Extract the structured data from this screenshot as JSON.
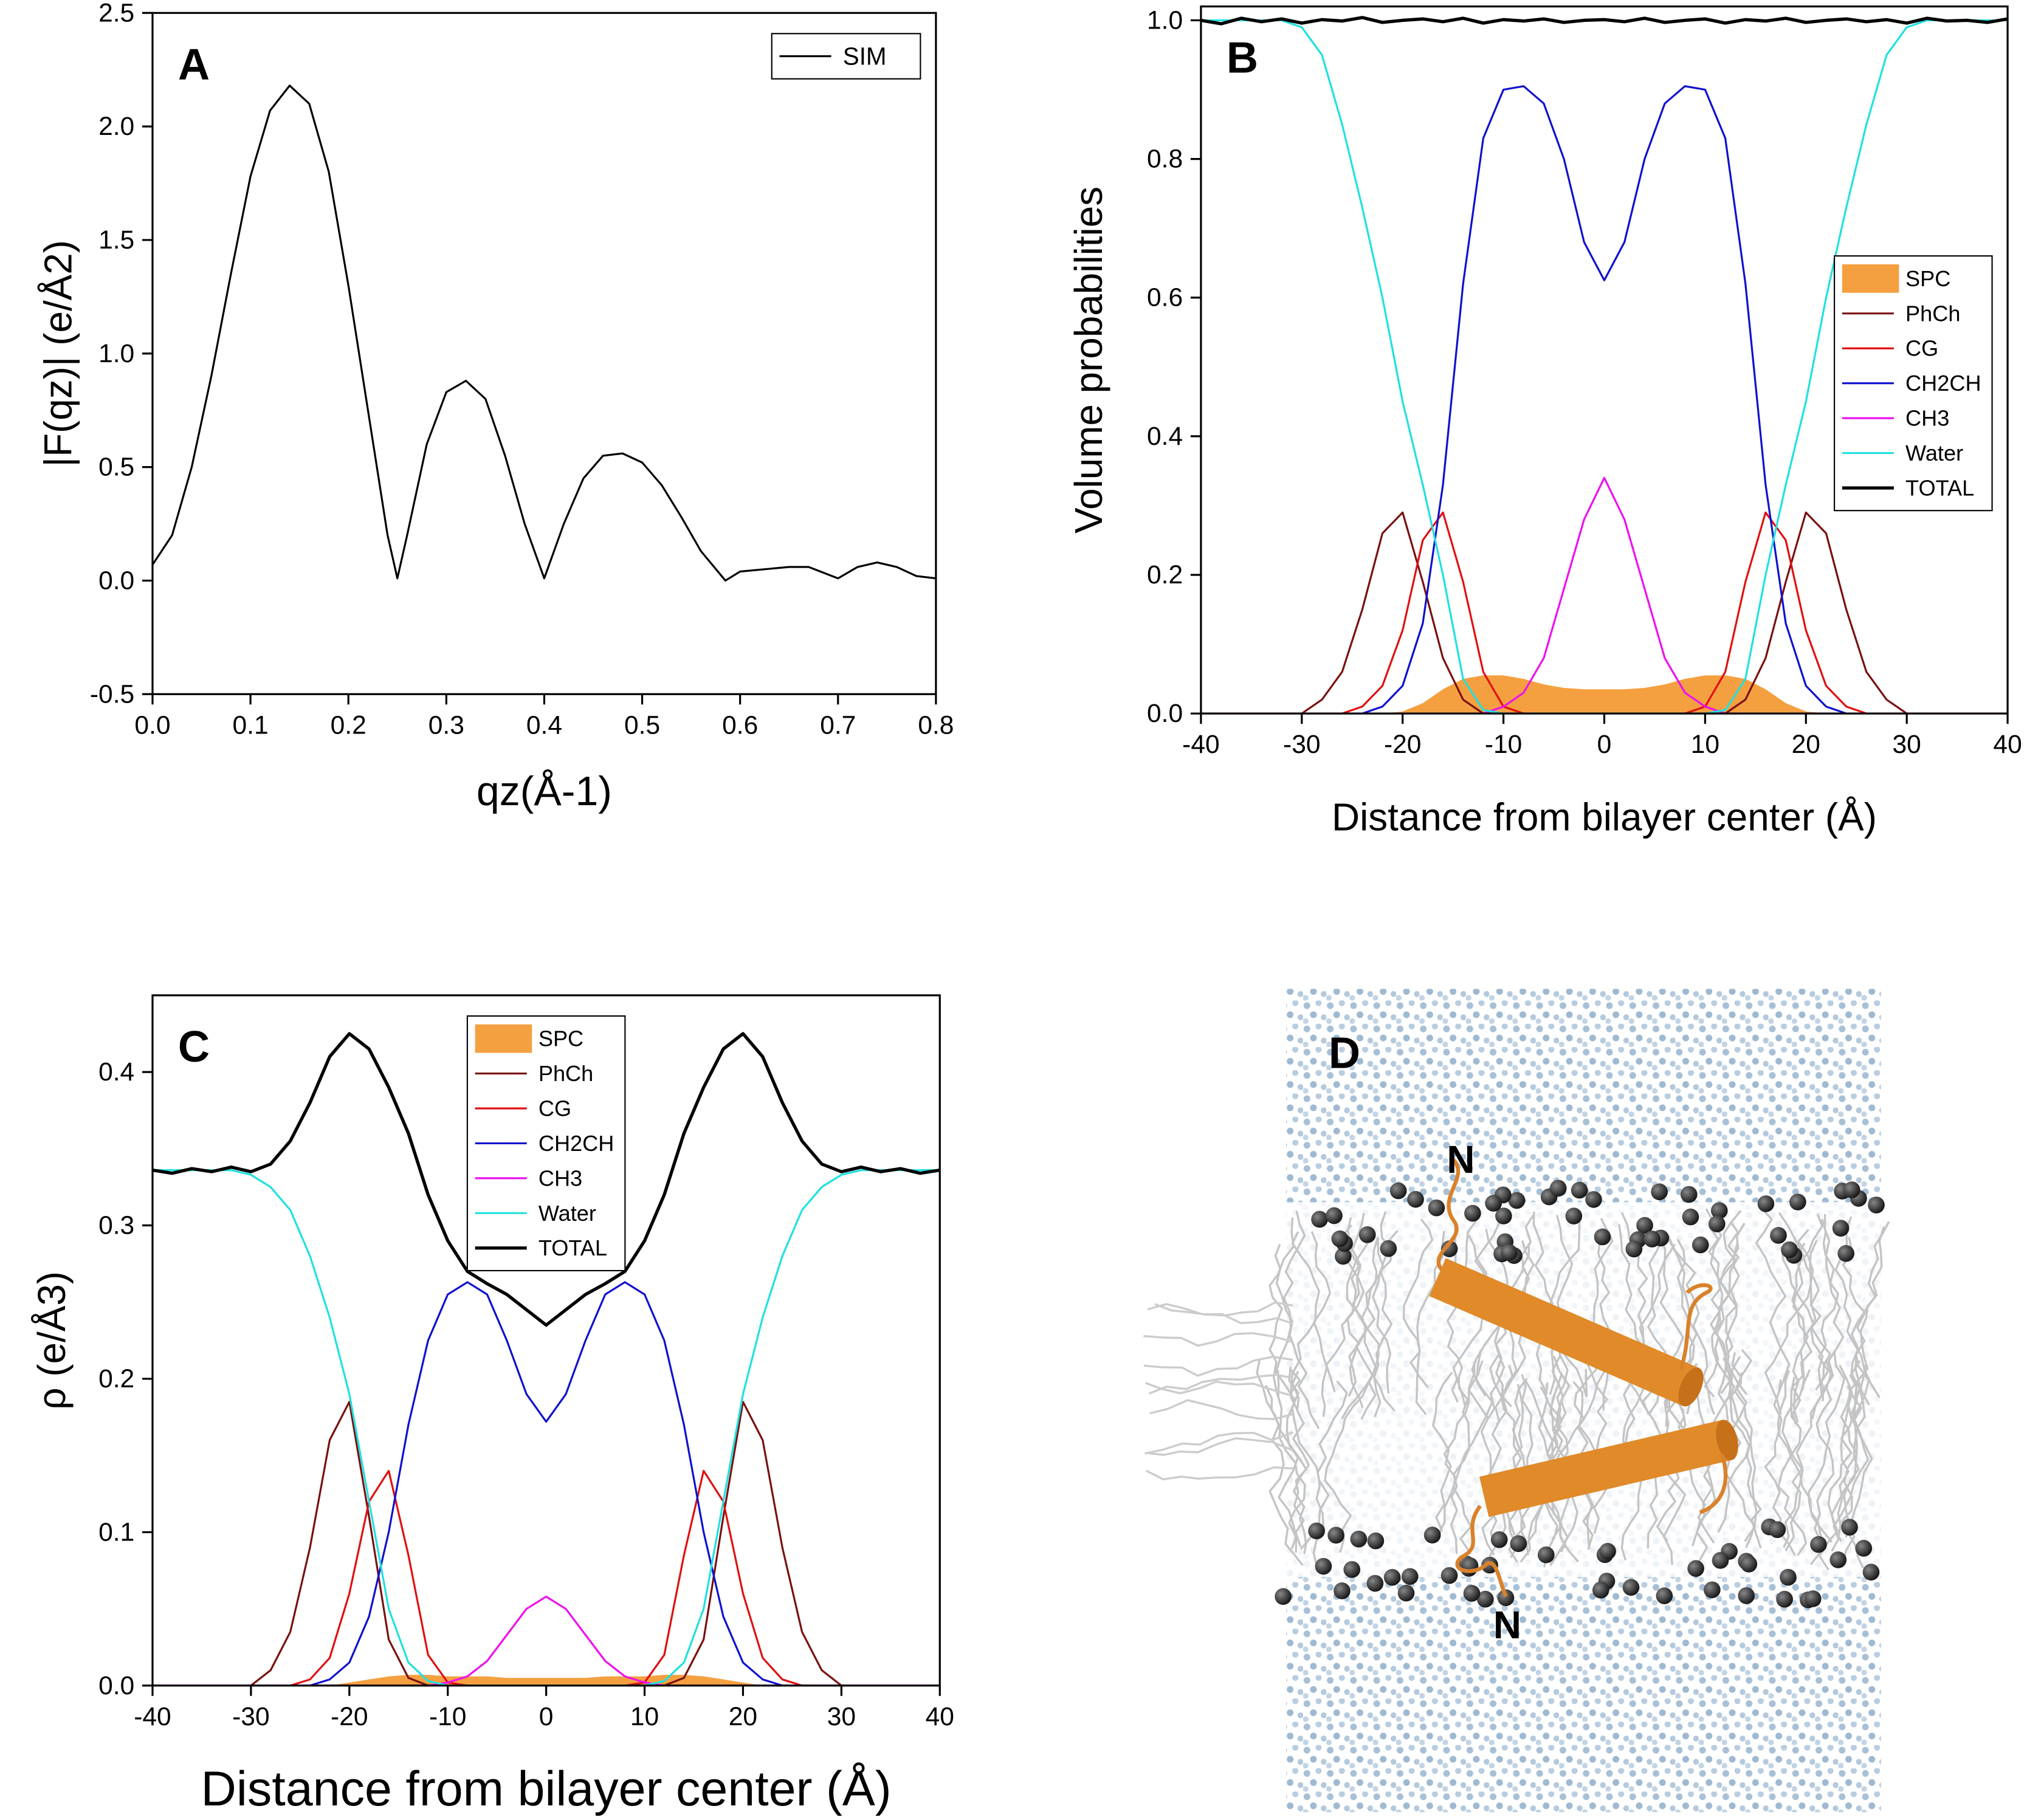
{
  "chart_data": [
    {
      "type": "line",
      "panel_label": "A",
      "xlabel": "qz(Å-1)",
      "ylabel": "|F(qz)| (e/Å2)",
      "xlim": [
        0,
        0.8
      ],
      "ylim": [
        -0.5,
        2.5
      ],
      "xticks": [
        {
          "value": 0,
          "label": "0.0"
        },
        0.1,
        0.2,
        0.3,
        0.4,
        0.5,
        0.6,
        0.7,
        0.8
      ],
      "yticks": [
        -0.5,
        {
          "value": 0,
          "label": "0.0"
        },
        0.5,
        {
          "value": 1,
          "label": "1.0"
        },
        1.5,
        {
          "value": 2,
          "label": "2.0"
        },
        2.5
      ],
      "legend_position": "upper right",
      "x": [
        0,
        0.02,
        0.04,
        0.06,
        0.08,
        0.1,
        0.12,
        0.14,
        0.16,
        0.18,
        0.2,
        0.22,
        0.24,
        0.25,
        0.26,
        0.28,
        0.3,
        0.32,
        0.34,
        0.36,
        0.38,
        0.4,
        0.42,
        0.44,
        0.46,
        0.48,
        0.5,
        0.52,
        0.54,
        0.56,
        0.585,
        0.6,
        0.65,
        0.67,
        0.7,
        0.72,
        0.74,
        0.76,
        0.78,
        0.8
      ],
      "series": [
        {
          "name": "SIM",
          "color": "#000000",
          "width": 1.5,
          "values": [
            0.07,
            0.2,
            0.5,
            0.9,
            1.35,
            1.78,
            2.07,
            2.18,
            2.1,
            1.8,
            1.3,
            0.75,
            0.2,
            0.01,
            0.2,
            0.6,
            0.83,
            0.88,
            0.8,
            0.55,
            0.25,
            0.01,
            0.25,
            0.45,
            0.55,
            0.56,
            0.52,
            0.42,
            0.28,
            0.13,
            0,
            0.04,
            0.06,
            0.06,
            0.01,
            0.06,
            0.08,
            0.06,
            0.02,
            0.01
          ]
        }
      ]
    },
    {
      "type": "line",
      "panel_label": "B",
      "xlabel": "Distance from bilayer center (Å)",
      "ylabel": "Volume probabilities",
      "xlim": [
        -40,
        40
      ],
      "ylim": [
        0,
        1.02
      ],
      "xticks": [
        -40,
        -30,
        -20,
        -10,
        0,
        10,
        20,
        30,
        40
      ],
      "yticks": [
        {
          "value": 0,
          "label": "0.0"
        },
        0.2,
        0.4,
        0.6,
        0.8,
        {
          "value": 1,
          "label": "1.0"
        }
      ],
      "legend_position": "center right",
      "x": [
        -40,
        -38,
        -36,
        -34,
        -32,
        -30,
        -28,
        -26,
        -24,
        -22,
        -20,
        -18,
        -16,
        -14,
        -12,
        -10,
        -8,
        -6,
        -4,
        -2,
        0,
        2,
        4,
        6,
        8,
        10,
        12,
        14,
        16,
        18,
        20,
        22,
        24,
        26,
        28,
        30,
        32,
        34,
        36,
        38,
        40
      ],
      "series": [
        {
          "name": "SPC",
          "color": "#f5a040",
          "kind": "area",
          "values": [
            0,
            0,
            0,
            0,
            0,
            0,
            0,
            0,
            0,
            0,
            0.003,
            0.015,
            0.035,
            0.05,
            0.055,
            0.055,
            0.05,
            0.042,
            0.037,
            0.035,
            0.035,
            0.035,
            0.037,
            0.042,
            0.05,
            0.055,
            0.055,
            0.05,
            0.035,
            0.015,
            0.003,
            0,
            0,
            0,
            0,
            0,
            0,
            0,
            0,
            0,
            0
          ]
        },
        {
          "name": "PhCh",
          "color": "#7a1010",
          "width": 1.5,
          "values": [
            0,
            0,
            0,
            0,
            0,
            0,
            0.02,
            0.06,
            0.15,
            0.26,
            0.29,
            0.19,
            0.08,
            0.02,
            0,
            0,
            0,
            0,
            0,
            0,
            0,
            0,
            0,
            0,
            0,
            0,
            0,
            0.02,
            0.08,
            0.19,
            0.29,
            0.26,
            0.15,
            0.06,
            0.02,
            0,
            0,
            0,
            0,
            0,
            0
          ]
        },
        {
          "name": "CG",
          "color": "#e01010",
          "width": 1.5,
          "values": [
            0,
            0,
            0,
            0,
            0,
            0,
            0,
            0,
            0.01,
            0.04,
            0.12,
            0.25,
            0.29,
            0.19,
            0.06,
            0.01,
            0,
            0,
            0,
            0,
            0,
            0,
            0,
            0,
            0,
            0.01,
            0.06,
            0.19,
            0.29,
            0.25,
            0.12,
            0.04,
            0.01,
            0,
            0,
            0,
            0,
            0,
            0,
            0,
            0
          ]
        },
        {
          "name": "CH2CH",
          "color": "#1010d0",
          "width": 1.5,
          "values": [
            0,
            0,
            0,
            0,
            0,
            0,
            0,
            0,
            0,
            0.01,
            0.04,
            0.13,
            0.33,
            0.62,
            0.83,
            0.9,
            0.905,
            0.88,
            0.8,
            0.68,
            0.625,
            0.68,
            0.8,
            0.88,
            0.905,
            0.9,
            0.83,
            0.62,
            0.33,
            0.13,
            0.04,
            0.01,
            0,
            0,
            0,
            0,
            0,
            0,
            0,
            0,
            0
          ]
        },
        {
          "name": "CH3",
          "color": "#ee10ee",
          "width": 1.5,
          "values": [
            0,
            0,
            0,
            0,
            0,
            0,
            0,
            0,
            0,
            0,
            0,
            0,
            0,
            0,
            0,
            0.01,
            0.03,
            0.08,
            0.18,
            0.28,
            0.34,
            0.28,
            0.18,
            0.08,
            0.03,
            0.01,
            0,
            0,
            0,
            0,
            0,
            0,
            0,
            0,
            0,
            0,
            0,
            0,
            0,
            0,
            0
          ]
        },
        {
          "name": "Water",
          "color": "#20e0e0",
          "width": 1.5,
          "values": [
            1,
            1,
            1,
            1,
            1,
            0.99,
            0.95,
            0.85,
            0.73,
            0.6,
            0.45,
            0.33,
            0.2,
            0.05,
            0.005,
            0,
            0,
            0,
            0,
            0,
            0,
            0,
            0,
            0,
            0,
            0,
            0.005,
            0.05,
            0.2,
            0.33,
            0.45,
            0.6,
            0.73,
            0.85,
            0.95,
            0.99,
            1,
            1,
            1,
            1,
            1
          ]
        },
        {
          "name": "TOTAL",
          "color": "#000000",
          "width": 2.5,
          "values": [
            1.0,
            0.995,
            1.003,
            0.998,
            1.002,
            0.996,
            1.001,
            0.999,
            1.004,
            0.997,
            1.0,
            1.002,
            0.998,
            1.003,
            0.996,
            1.001,
            0.999,
            1.002,
            0.997,
            1.0,
            1.001,
            0.998,
            1.003,
            0.997,
            1.0,
            1.002,
            0.996,
            1.001,
            0.999,
            1.003,
            0.997,
            1.0,
            1.002,
            0.998,
            1.001,
            0.996,
            1.003,
            0.999,
            1.0,
            0.997,
            1.002
          ]
        }
      ]
    },
    {
      "type": "line",
      "panel_label": "C",
      "xlabel": "Distance from bilayer center (Å)",
      "ylabel": "ρ (e/Å3)",
      "xlim": [
        -40,
        40
      ],
      "ylim": [
        0,
        0.45
      ],
      "xticks": [
        -40,
        -30,
        -20,
        -10,
        0,
        10,
        20,
        30,
        40
      ],
      "yticks": [
        {
          "value": 0,
          "label": "0.0"
        },
        0.1,
        0.2,
        0.3,
        0.4
      ],
      "legend_position": "upper center",
      "x": [
        -40,
        -38,
        -36,
        -34,
        -32,
        -30,
        -28,
        -26,
        -24,
        -22,
        -20,
        -18,
        -16,
        -14,
        -12,
        -10,
        -8,
        -6,
        -4,
        -2,
        0,
        2,
        4,
        6,
        8,
        10,
        12,
        14,
        16,
        18,
        20,
        22,
        24,
        26,
        28,
        30,
        32,
        34,
        36,
        38,
        40
      ],
      "series": [
        {
          "name": "SPC",
          "color": "#f5a040",
          "kind": "area",
          "values": [
            0,
            0,
            0,
            0,
            0,
            0,
            0,
            0,
            0,
            0,
            0.002,
            0.004,
            0.006,
            0.007,
            0.007,
            0.006,
            0.006,
            0.006,
            0.005,
            0.005,
            0.005,
            0.005,
            0.005,
            0.006,
            0.006,
            0.006,
            0.007,
            0.007,
            0.006,
            0.004,
            0.002,
            0,
            0,
            0,
            0,
            0,
            0,
            0,
            0,
            0,
            0
          ]
        },
        {
          "name": "PhCh",
          "color": "#7a1010",
          "width": 1.5,
          "values": [
            0,
            0,
            0,
            0,
            0,
            0,
            0.01,
            0.035,
            0.09,
            0.16,
            0.185,
            0.11,
            0.03,
            0.005,
            0,
            0,
            0,
            0,
            0,
            0,
            0,
            0,
            0,
            0,
            0,
            0,
            0,
            0.005,
            0.03,
            0.11,
            0.185,
            0.16,
            0.09,
            0.035,
            0.01,
            0,
            0,
            0,
            0,
            0,
            0
          ]
        },
        {
          "name": "CG",
          "color": "#e01010",
          "width": 1.5,
          "values": [
            0,
            0,
            0,
            0,
            0,
            0,
            0,
            0,
            0.004,
            0.018,
            0.06,
            0.12,
            0.14,
            0.085,
            0.02,
            0.002,
            0,
            0,
            0,
            0,
            0,
            0,
            0,
            0,
            0,
            0.002,
            0.02,
            0.085,
            0.14,
            0.12,
            0.06,
            0.018,
            0.004,
            0,
            0,
            0,
            0,
            0,
            0,
            0,
            0
          ]
        },
        {
          "name": "CH2CH",
          "color": "#1010d0",
          "width": 1.5,
          "values": [
            0,
            0,
            0,
            0,
            0,
            0,
            0,
            0,
            0,
            0.004,
            0.015,
            0.045,
            0.1,
            0.17,
            0.225,
            0.255,
            0.263,
            0.255,
            0.225,
            0.19,
            0.172,
            0.19,
            0.225,
            0.255,
            0.263,
            0.255,
            0.225,
            0.17,
            0.1,
            0.045,
            0.015,
            0.004,
            0,
            0,
            0,
            0,
            0,
            0,
            0,
            0,
            0
          ]
        },
        {
          "name": "CH3",
          "color": "#ee10ee",
          "width": 1.5,
          "values": [
            0,
            0,
            0,
            0,
            0,
            0,
            0,
            0,
            0,
            0,
            0,
            0,
            0,
            0,
            0,
            0.002,
            0.006,
            0.016,
            0.033,
            0.05,
            0.058,
            0.05,
            0.033,
            0.016,
            0.006,
            0.002,
            0,
            0,
            0,
            0,
            0,
            0,
            0,
            0,
            0,
            0,
            0,
            0,
            0,
            0,
            0
          ]
        },
        {
          "name": "Water",
          "color": "#20e0e0",
          "width": 1.5,
          "values": [
            0.336,
            0.336,
            0.336,
            0.336,
            0.336,
            0.333,
            0.325,
            0.31,
            0.28,
            0.24,
            0.19,
            0.12,
            0.05,
            0.015,
            0.003,
            0,
            0,
            0,
            0,
            0,
            0,
            0,
            0,
            0,
            0,
            0,
            0.003,
            0.015,
            0.05,
            0.12,
            0.19,
            0.24,
            0.28,
            0.31,
            0.325,
            0.333,
            0.336,
            0.336,
            0.336,
            0.336,
            0.336
          ]
        },
        {
          "name": "TOTAL",
          "color": "#000000",
          "width": 2.5,
          "values": [
            0.336,
            0.334,
            0.337,
            0.335,
            0.338,
            0.335,
            0.34,
            0.355,
            0.38,
            0.41,
            0.425,
            0.415,
            0.39,
            0.36,
            0.32,
            0.29,
            0.27,
            0.262,
            0.255,
            0.245,
            0.235,
            0.245,
            0.255,
            0.262,
            0.27,
            0.29,
            0.32,
            0.36,
            0.39,
            0.415,
            0.425,
            0.41,
            0.38,
            0.355,
            0.34,
            0.335,
            0.338,
            0.335,
            0.337,
            0.334,
            0.336
          ]
        }
      ]
    }
  ],
  "panel_d": {
    "label": "D",
    "n_terminus_labels": [
      "N",
      "N"
    ]
  }
}
